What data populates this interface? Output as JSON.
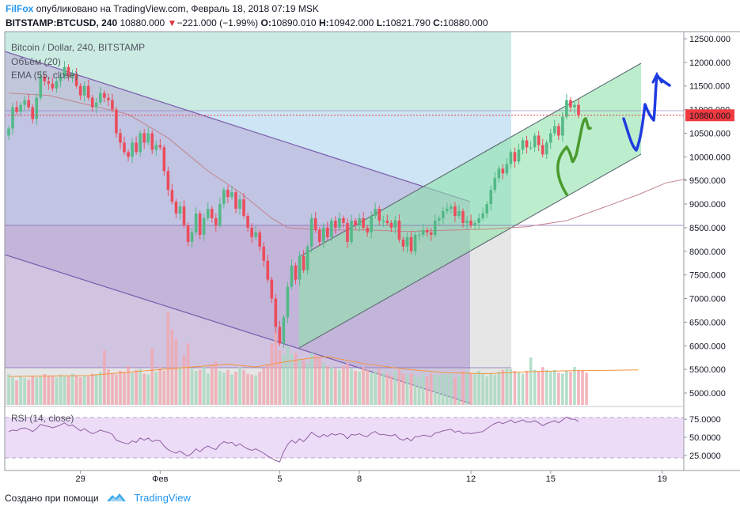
{
  "header": {
    "author": "FilFox",
    "published": "опубликовано на TradingView.com, Февраль 18, 2018 07:19 MSK",
    "symbol": "BITSTAMP:BTCUSD, 240",
    "last": "10880.000",
    "change_arrow": "▼",
    "change": "−221.000 (−1.99%)",
    "o_label": "O:",
    "o_val": "10890.010",
    "h_label": "H:",
    "h_val": "10942.000",
    "l_label": "L:",
    "l_val": "10821.790",
    "c_label": "C:",
    "c_val": "10880.000"
  },
  "legend": {
    "main": "Bitcoin / Dollar, 240, BITSTAMP",
    "volume": "Объём (20)",
    "ema": "EMA (55, close)",
    "rsi": "RSI (14, close)"
  },
  "price_label": "10880.000",
  "footer": {
    "text": "Создано при помощи",
    "brand": "TradingView"
  },
  "colors": {
    "up": "#53b987",
    "down": "#eb4d5c",
    "ema": "#c2848c",
    "rsi": "#8e5ea2"
  },
  "chart_data": {
    "type": "candlestick",
    "title": "Bitcoin / Dollar, 240, BITSTAMP",
    "y_ticks": [
      "12500.000",
      "12000.000",
      "11500.000",
      "11000.000",
      "10500.000",
      "10000.000",
      "9500.000",
      "9000.000",
      "8500.000",
      "8000.000",
      "7500.000",
      "7000.000",
      "6500.000",
      "6000.000",
      "5500.000",
      "5000.000"
    ],
    "ylim": [
      4850,
      12600
    ],
    "x_ticks": [
      {
        "label": "29",
        "bar": 18
      },
      {
        "label": "Фев",
        "bar": 38
      },
      {
        "label": "5",
        "bar": 68
      },
      {
        "label": "8",
        "bar": 88
      },
      {
        "label": "12",
        "bar": 116
      },
      {
        "label": "15",
        "bar": 136
      },
      {
        "label": "19",
        "bar": 164
      }
    ],
    "rsi_ticks": [
      "75.0000",
      "50.0000",
      "25.0000"
    ],
    "rsi_range": [
      15,
      85
    ],
    "closes": [
      10600,
      11050,
      10950,
      11100,
      11200,
      11050,
      10800,
      11250,
      11700,
      11600,
      11550,
      11450,
      11600,
      11700,
      11900,
      11700,
      11750,
      11500,
      11300,
      11500,
      11250,
      11050,
      11150,
      11350,
      11250,
      11200,
      11000,
      10500,
      10300,
      10100,
      10000,
      10300,
      10100,
      10500,
      10300,
      10500,
      10150,
      10250,
      10200,
      9700,
      9300,
      9050,
      8800,
      8950,
      8550,
      8200,
      8400,
      8800,
      8350,
      8700,
      8900,
      8700,
      8550,
      9000,
      9300,
      9150,
      9250,
      8900,
      9100,
      8750,
      8500,
      8300,
      8400,
      8100,
      7800,
      7400,
      7000,
      6400,
      6050,
      6600,
      7250,
      7700,
      7400,
      7900,
      7600,
      8100,
      8700,
      8450,
      8200,
      8500,
      8300,
      8650,
      8500,
      8700,
      8600,
      8200,
      8650,
      8550,
      8700,
      8500,
      8400,
      8750,
      8900,
      8650,
      8650,
      8600,
      8500,
      8650,
      8250,
      8100,
      8300,
      8000,
      8350,
      8350,
      8450,
      8400,
      8350,
      8650,
      8700,
      8850,
      8900,
      8950,
      8750,
      8850,
      8600,
      8650,
      8550,
      8600,
      8700,
      8800,
      9000,
      9300,
      9550,
      9750,
      9650,
      9850,
      10100,
      9900,
      10150,
      10350,
      10200,
      10200,
      10450,
      10250,
      10050,
      10300,
      10500,
      10650,
      10450,
      10850,
      11200,
      11050,
      11100,
      10880
    ],
    "volumes": [
      550,
      480,
      420,
      500,
      470,
      430,
      520,
      480,
      500,
      550,
      520,
      500,
      480,
      540,
      520,
      500,
      560,
      510,
      480,
      520,
      500,
      560,
      540,
      600,
      1050,
      650,
      560,
      540,
      620,
      600,
      720,
      580,
      640,
      660,
      560,
      540,
      1100,
      600,
      700,
      620,
      1850,
      1500,
      1300,
      700,
      950,
      1200,
      660,
      620,
      640,
      700,
      560,
      760,
      820,
      620,
      580,
      640,
      540,
      600,
      700,
      640,
      560,
      540,
      520,
      600,
      680,
      760,
      1200,
      1450,
      1050,
      960,
      1150,
      980,
      1000,
      880,
      840,
      780,
      1000,
      950,
      900,
      780,
      720,
      700,
      660,
      640,
      720,
      780,
      660,
      620,
      600,
      700,
      640,
      580,
      600,
      660,
      580,
      560,
      520,
      620,
      640,
      560,
      540,
      560,
      520,
      480,
      540,
      500,
      560,
      540,
      520,
      560,
      540,
      560,
      480,
      520,
      620,
      600,
      580,
      560,
      620,
      560,
      500,
      560,
      540,
      600,
      640,
      660,
      660,
      620,
      580,
      560,
      620,
      900,
      640,
      620,
      700,
      640,
      600,
      640,
      580,
      560,
      620,
      600,
      700,
      640,
      620,
      580
    ],
    "rsi": [
      58,
      60,
      59,
      62,
      63,
      61,
      58,
      62,
      68,
      66,
      65,
      63,
      65,
      67,
      70,
      66,
      67,
      63,
      59,
      62,
      58,
      55,
      57,
      60,
      58,
      57,
      54,
      46,
      44,
      42,
      41,
      45,
      43,
      49,
      46,
      49,
      44,
      46,
      45,
      38,
      33,
      30,
      28,
      31,
      27,
      24,
      28,
      34,
      30,
      35,
      38,
      35,
      33,
      40,
      44,
      42,
      43,
      38,
      41,
      37,
      34,
      32,
      34,
      31,
      28,
      24,
      21,
      18,
      16,
      30,
      40,
      46,
      42,
      48,
      44,
      50,
      57,
      53,
      50,
      54,
      51,
      55,
      53,
      55,
      54,
      48,
      54,
      53,
      55,
      52,
      51,
      56,
      58,
      54,
      54,
      53,
      52,
      54,
      48,
      46,
      49,
      45,
      51,
      51,
      53,
      52,
      51,
      56,
      57,
      59,
      60,
      61,
      57,
      59,
      55,
      56,
      55,
      56,
      57,
      58,
      62,
      66,
      69,
      71,
      69,
      71,
      74,
      70,
      72,
      74,
      71,
      71,
      73,
      70,
      66,
      69,
      71,
      73,
      70,
      74,
      78,
      75,
      75,
      72
    ],
    "ema_points": [
      [
        0,
        11350
      ],
      [
        10,
        11300
      ],
      [
        20,
        11100
      ],
      [
        30,
        10900
      ],
      [
        40,
        10400
      ],
      [
        50,
        9700
      ],
      [
        58,
        9250
      ],
      [
        66,
        8700
      ],
      [
        70,
        8500
      ],
      [
        78,
        8450
      ],
      [
        90,
        8450
      ],
      [
        100,
        8420
      ],
      [
        112,
        8450
      ],
      [
        120,
        8470
      ],
      [
        130,
        8520
      ],
      [
        140,
        8650
      ],
      [
        150,
        8950
      ],
      [
        158,
        9200
      ],
      [
        165,
        9450
      ],
      [
        170,
        9530
      ]
    ],
    "vol_ma_points": [
      [
        0,
        500
      ],
      [
        20,
        520
      ],
      [
        40,
        660
      ],
      [
        55,
        760
      ],
      [
        62,
        700
      ],
      [
        70,
        820
      ],
      [
        75,
        880
      ],
      [
        80,
        920
      ],
      [
        90,
        760
      ],
      [
        100,
        650
      ],
      [
        110,
        580
      ],
      [
        120,
        560
      ],
      [
        130,
        600
      ],
      [
        140,
        620
      ],
      [
        150,
        630
      ],
      [
        158,
        640
      ]
    ]
  }
}
